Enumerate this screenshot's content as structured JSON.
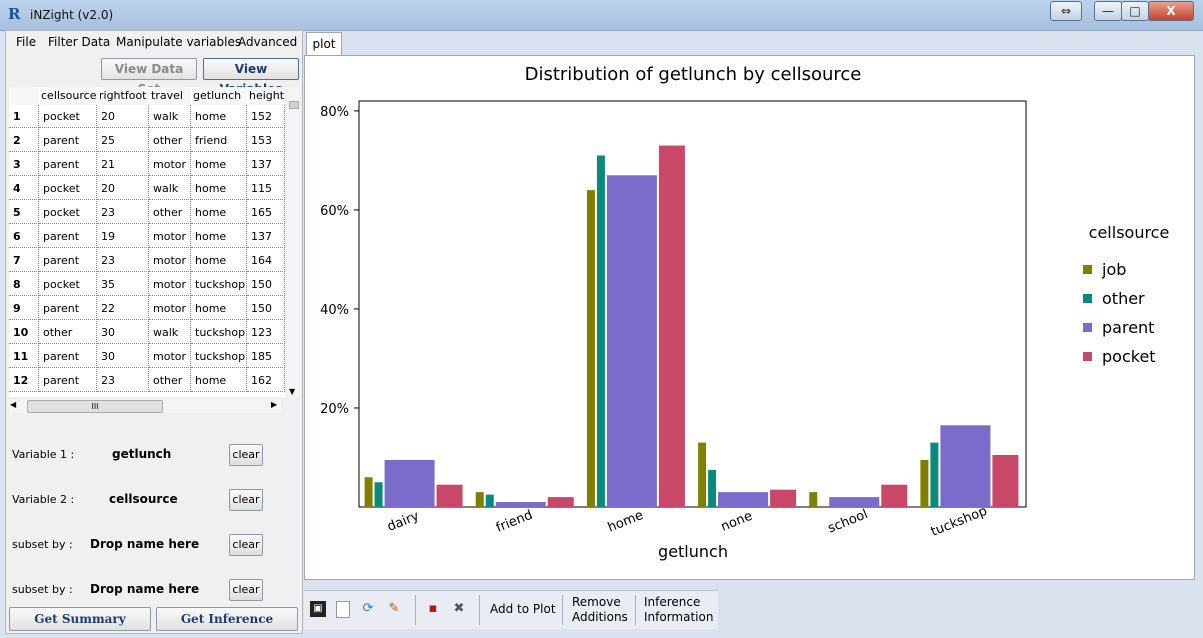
{
  "window": {
    "title": "iNZight (v2.0)",
    "app_icon": "R"
  },
  "window_controls": {
    "restore": "⇔",
    "minimize": "—",
    "maximize": "□",
    "close": "X"
  },
  "menu": [
    "File",
    "Filter Data",
    "Manipulate variables",
    "Advanced"
  ],
  "view_buttons": {
    "dataset": "View Data Set",
    "variables": "View Variables"
  },
  "table": {
    "columns": [
      "cellsource",
      "rightfoot",
      "travel",
      "getlunch",
      "height"
    ],
    "rows": [
      {
        "n": "1",
        "v": [
          "pocket",
          "20",
          "walk",
          "home",
          "152"
        ]
      },
      {
        "n": "2",
        "v": [
          "parent",
          "25",
          "other",
          "friend",
          "153"
        ]
      },
      {
        "n": "3",
        "v": [
          "parent",
          "21",
          "motor",
          "home",
          "137"
        ]
      },
      {
        "n": "4",
        "v": [
          "pocket",
          "20",
          "walk",
          "home",
          "115"
        ]
      },
      {
        "n": "5",
        "v": [
          "pocket",
          "23",
          "other",
          "home",
          "165"
        ]
      },
      {
        "n": "6",
        "v": [
          "parent",
          "19",
          "motor",
          "home",
          "137"
        ]
      },
      {
        "n": "7",
        "v": [
          "parent",
          "23",
          "motor",
          "home",
          "164"
        ]
      },
      {
        "n": "8",
        "v": [
          "pocket",
          "35",
          "motor",
          "tuckshop",
          "150"
        ]
      },
      {
        "n": "9",
        "v": [
          "parent",
          "22",
          "motor",
          "home",
          "150"
        ]
      },
      {
        "n": "10",
        "v": [
          "other",
          "30",
          "walk",
          "tuckshop",
          "123"
        ]
      },
      {
        "n": "11",
        "v": [
          "parent",
          "30",
          "motor",
          "tuckshop",
          "185"
        ]
      },
      {
        "n": "12",
        "v": [
          "parent",
          "23",
          "other",
          "home",
          "162"
        ]
      }
    ],
    "hscroll_grip": "III"
  },
  "controls": {
    "var1_label": "Variable 1 :",
    "var1_value": "getlunch",
    "var2_label": "Variable 2 :",
    "var2_value": "cellsource",
    "subset1_label": "subset by :",
    "subset1_value": "Drop name here",
    "subset2_label": "subset by :",
    "subset2_value": "Drop name here",
    "clear_label": "clear"
  },
  "actions": {
    "summary": "Get Summary",
    "inference": "Get Inference"
  },
  "tabs": [
    "plot"
  ],
  "toolbar": {
    "add_to_plot": "Add to Plot",
    "remove_line1": "Remove",
    "remove_line2": "Additions",
    "inference_line1": "Inference",
    "inference_line2": "Information"
  },
  "chart_data": {
    "type": "bar",
    "title": "Distribution of getlunch by cellsource",
    "xlabel": "getlunch",
    "ylabel": "",
    "categories": [
      "dairy",
      "friend",
      "home",
      "none",
      "school",
      "tuckshop"
    ],
    "ylim": [
      0,
      82
    ],
    "yticks": [
      20,
      40,
      60,
      80
    ],
    "ytick_labels": [
      "20%",
      "40%",
      "60%",
      "80%"
    ],
    "legend_title": "cellsource",
    "legend_position": "right",
    "series": [
      {
        "name": "job",
        "color": "#808000",
        "values": [
          6,
          3,
          64,
          13,
          3,
          9.5
        ]
      },
      {
        "name": "other",
        "color": "#0a8a7a",
        "values": [
          5,
          2.5,
          71,
          7.5,
          0,
          13
        ]
      },
      {
        "name": "parent",
        "color": "#7b6ccc",
        "values": [
          9.5,
          1,
          67,
          3,
          2,
          16.5
        ]
      },
      {
        "name": "pocket",
        "color": "#c9486a",
        "values": [
          4.5,
          2,
          73,
          3.5,
          4.5,
          10.5
        ]
      }
    ]
  }
}
